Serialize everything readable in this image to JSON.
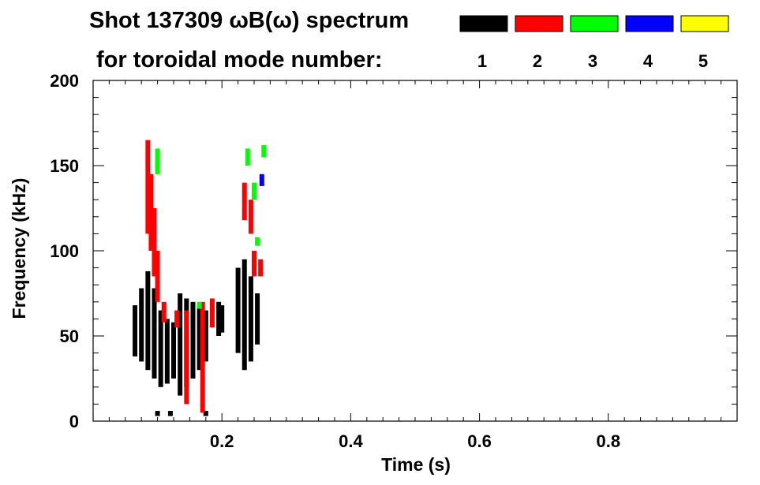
{
  "chart_data": {
    "type": "heatmap",
    "title_line1": "Shot 137309 ωB(ω) spectrum",
    "title_line2": "for toroidal mode number:",
    "xlabel": "Time (s)",
    "ylabel": "Frequency (kHz)",
    "xlim": [
      0.0,
      1.0
    ],
    "ylim": [
      0,
      200
    ],
    "x_ticks": [
      {
        "value": 0.2,
        "label": "0.2"
      },
      {
        "value": 0.4,
        "label": "0.4"
      },
      {
        "value": 0.6,
        "label": "0.6"
      },
      {
        "value": 0.8,
        "label": "0.8"
      }
    ],
    "y_ticks": [
      {
        "value": 0,
        "label": "0"
      },
      {
        "value": 50,
        "label": "50"
      },
      {
        "value": 100,
        "label": "100"
      },
      {
        "value": 150,
        "label": "150"
      },
      {
        "value": 200,
        "label": "200"
      }
    ],
    "legend": {
      "placement": "top-right",
      "entries": [
        {
          "label": "1",
          "color": "#000000"
        },
        {
          "label": "2",
          "color": "#ff0000"
        },
        {
          "label": "3",
          "color": "#00ff00"
        },
        {
          "label": "4",
          "color": "#0000ff"
        },
        {
          "label": "5",
          "color": "#ffff00"
        }
      ]
    },
    "series": [
      {
        "mode": "1",
        "color": "#000000",
        "points": [
          {
            "t": 0.065,
            "f_min": 38,
            "f_max": 68
          },
          {
            "t": 0.075,
            "f_min": 35,
            "f_max": 78
          },
          {
            "t": 0.085,
            "f_min": 30,
            "f_max": 88
          },
          {
            "t": 0.095,
            "f_min": 25,
            "f_max": 78
          },
          {
            "t": 0.105,
            "f_min": 20,
            "f_max": 65
          },
          {
            "t": 0.115,
            "f_min": 22,
            "f_max": 60
          },
          {
            "t": 0.125,
            "f_min": 25,
            "f_max": 58
          },
          {
            "t": 0.135,
            "f_min": 15,
            "f_max": 75
          },
          {
            "t": 0.145,
            "f_min": 20,
            "f_max": 72
          },
          {
            "t": 0.155,
            "f_min": 25,
            "f_max": 70
          },
          {
            "t": 0.165,
            "f_min": 30,
            "f_max": 68
          },
          {
            "t": 0.175,
            "f_min": 35,
            "f_max": 65
          },
          {
            "t": 0.195,
            "f_min": 50,
            "f_max": 70
          },
          {
            "t": 0.2,
            "f_min": 52,
            "f_max": 68
          },
          {
            "t": 0.225,
            "f_min": 40,
            "f_max": 90
          },
          {
            "t": 0.235,
            "f_min": 30,
            "f_max": 95
          },
          {
            "t": 0.245,
            "f_min": 35,
            "f_max": 85
          },
          {
            "t": 0.255,
            "f_min": 45,
            "f_max": 75
          },
          {
            "t": 0.1,
            "f_min": 3,
            "f_max": 6
          },
          {
            "t": 0.12,
            "f_min": 3,
            "f_max": 6
          },
          {
            "t": 0.175,
            "f_min": 3,
            "f_max": 6
          }
        ]
      },
      {
        "mode": "2",
        "color": "#ff0000",
        "points": [
          {
            "t": 0.085,
            "f_min": 110,
            "f_max": 165
          },
          {
            "t": 0.09,
            "f_min": 100,
            "f_max": 145
          },
          {
            "t": 0.095,
            "f_min": 85,
            "f_max": 125
          },
          {
            "t": 0.1,
            "f_min": 70,
            "f_max": 100
          },
          {
            "t": 0.11,
            "f_min": 58,
            "f_max": 70
          },
          {
            "t": 0.13,
            "f_min": 55,
            "f_max": 65
          },
          {
            "t": 0.145,
            "f_min": 10,
            "f_max": 65
          },
          {
            "t": 0.17,
            "f_min": 5,
            "f_max": 70
          },
          {
            "t": 0.185,
            "f_min": 55,
            "f_max": 72
          },
          {
            "t": 0.235,
            "f_min": 118,
            "f_max": 140
          },
          {
            "t": 0.245,
            "f_min": 110,
            "f_max": 130
          },
          {
            "t": 0.25,
            "f_min": 85,
            "f_max": 100
          },
          {
            "t": 0.26,
            "f_min": 85,
            "f_max": 95
          }
        ]
      },
      {
        "mode": "3",
        "color": "#00ff00",
        "points": [
          {
            "t": 0.1,
            "f_min": 145,
            "f_max": 160
          },
          {
            "t": 0.165,
            "f_min": 66,
            "f_max": 70
          },
          {
            "t": 0.24,
            "f_min": 150,
            "f_max": 160
          },
          {
            "t": 0.25,
            "f_min": 130,
            "f_max": 140
          },
          {
            "t": 0.255,
            "f_min": 103,
            "f_max": 108
          },
          {
            "t": 0.265,
            "f_min": 155,
            "f_max": 162
          }
        ]
      },
      {
        "mode": "4",
        "color": "#0000ff",
        "points": [
          {
            "t": 0.262,
            "f_min": 138,
            "f_max": 145
          }
        ]
      }
    ]
  }
}
